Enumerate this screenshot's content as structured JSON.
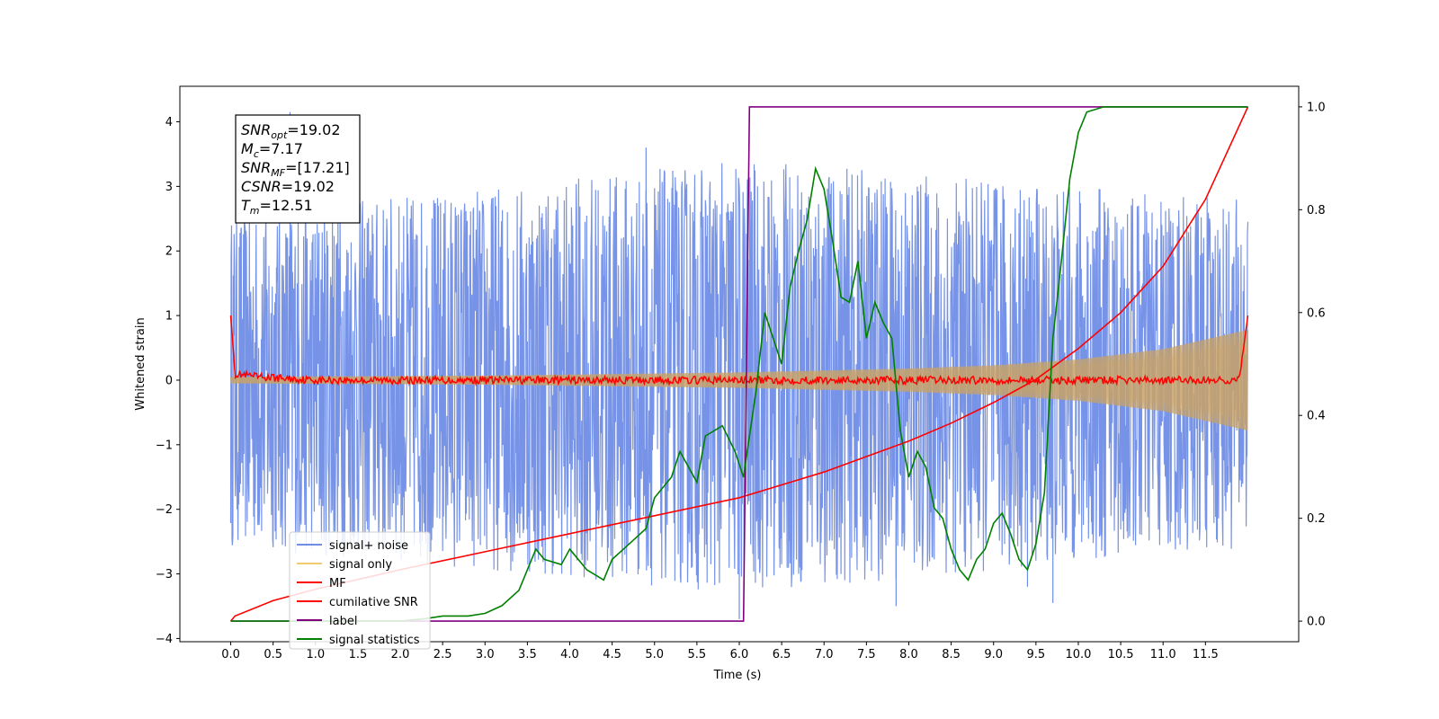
{
  "chart_data": {
    "type": "line",
    "xlabel": "Time (s)",
    "ylabel": "Whitened strain",
    "xlim": [
      -0.6,
      12.6
    ],
    "ylim": [
      -4.05,
      4.55
    ],
    "ylim_right": [
      -0.04,
      1.04
    ],
    "x_ticks": [
      "0.0",
      "0.5",
      "1.0",
      "1.5",
      "2.0",
      "2.5",
      "3.0",
      "3.5",
      "4.0",
      "4.5",
      "5.0",
      "5.5",
      "6.0",
      "6.5",
      "7.0",
      "7.5",
      "8.0",
      "8.5",
      "9.0",
      "9.5",
      "10.0",
      "10.5",
      "11.0",
      "11.5"
    ],
    "y_ticks": [
      "4",
      "3",
      "2",
      "1",
      "0",
      "−1",
      "−2",
      "−3",
      "−4"
    ],
    "y_ticks_right": [
      "1.0",
      "0.8",
      "0.6",
      "0.4",
      "0.2",
      "0.0"
    ],
    "legend_position": "lower-left",
    "grid": false,
    "legend": [
      {
        "name": "signal+ noise",
        "color": "#6f8de6"
      },
      {
        "name": "signal only",
        "color": "#f5c96e"
      },
      {
        "name": "MF",
        "color": "#ff0000"
      },
      {
        "name": "cumilative SNR",
        "color": "#ff0000"
      },
      {
        "name": "label",
        "color": "#800080"
      },
      {
        "name": "signal statistics",
        "color": "#008000"
      }
    ],
    "annotation": [
      {
        "sym": "SNR",
        "sub": "opt",
        "value": "=19.02"
      },
      {
        "sym": "M",
        "sub": "c",
        "value": "=7.17"
      },
      {
        "sym": "SNR",
        "sub": "MF",
        "value": "=[17.21]"
      },
      {
        "sym": "CSNR",
        "sub": "",
        "value": "=19.02"
      },
      {
        "sym": "T",
        "sub": "m",
        "value": "=12.51"
      }
    ],
    "series": [
      {
        "name": "signal+ noise",
        "axis": "left",
        "x_range": [
          0.0,
          12.0
        ],
        "approx_peak_envelope": [
          [
            0.0,
            2.6
          ],
          [
            6.0,
            3.4
          ],
          [
            12.0,
            2.8
          ]
        ],
        "approx_trough_envelope": [
          [
            0.0,
            -2.6
          ],
          [
            6.0,
            -3.3
          ],
          [
            12.0,
            -2.6
          ]
        ],
        "notable_extremes": [
          [
            0.7,
            4.15
          ],
          [
            1.2,
            3.9
          ],
          [
            4.9,
            3.6
          ],
          [
            6.0,
            -3.7
          ],
          [
            7.85,
            -3.5
          ],
          [
            9.4,
            -3.2
          ],
          [
            9.7,
            -3.45
          ]
        ]
      },
      {
        "name": "signal only",
        "axis": "left",
        "envelope": [
          [
            0.0,
            0.05
          ],
          [
            3.0,
            0.07
          ],
          [
            6.0,
            0.12
          ],
          [
            8.0,
            0.18
          ],
          [
            9.0,
            0.23
          ],
          [
            10.0,
            0.32
          ],
          [
            11.0,
            0.48
          ],
          [
            12.0,
            0.78
          ]
        ]
      },
      {
        "name": "MF",
        "axis": "left",
        "points": [
          [
            0.0,
            1.0
          ],
          [
            0.05,
            0.1
          ],
          [
            0.3,
            0.05
          ],
          [
            1.0,
            0.0
          ],
          [
            3.0,
            0.0
          ],
          [
            6.0,
            0.0
          ],
          [
            9.0,
            0.0
          ],
          [
            11.9,
            0.0
          ],
          [
            12.0,
            1.0
          ]
        ]
      },
      {
        "name": "cumilative SNR",
        "axis": "right",
        "points": [
          [
            0.0,
            0.0
          ],
          [
            0.05,
            0.01
          ],
          [
            0.5,
            0.04
          ],
          [
            1.0,
            0.062
          ],
          [
            2.0,
            0.1
          ],
          [
            3.0,
            0.135
          ],
          [
            4.0,
            0.17
          ],
          [
            5.0,
            0.205
          ],
          [
            6.0,
            0.24
          ],
          [
            7.0,
            0.29
          ],
          [
            8.0,
            0.35
          ],
          [
            8.5,
            0.385
          ],
          [
            9.0,
            0.425
          ],
          [
            9.5,
            0.47
          ],
          [
            10.0,
            0.53
          ],
          [
            10.5,
            0.6
          ],
          [
            11.0,
            0.69
          ],
          [
            11.5,
            0.82
          ],
          [
            12.0,
            1.0
          ]
        ]
      },
      {
        "name": "label",
        "axis": "right",
        "points": [
          [
            0.0,
            0.0
          ],
          [
            6.05,
            0.0
          ],
          [
            6.12,
            1.0
          ],
          [
            12.0,
            1.0
          ]
        ]
      },
      {
        "name": "signal statistics",
        "axis": "right",
        "points": [
          [
            0.0,
            0.0
          ],
          [
            1.0,
            0.0
          ],
          [
            2.0,
            0.0
          ],
          [
            2.3,
            0.005
          ],
          [
            2.5,
            0.01
          ],
          [
            2.8,
            0.01
          ],
          [
            3.0,
            0.015
          ],
          [
            3.2,
            0.03
          ],
          [
            3.4,
            0.06
          ],
          [
            3.5,
            0.1
          ],
          [
            3.6,
            0.14
          ],
          [
            3.7,
            0.12
          ],
          [
            3.9,
            0.11
          ],
          [
            4.0,
            0.14
          ],
          [
            4.2,
            0.1
          ],
          [
            4.4,
            0.08
          ],
          [
            4.5,
            0.12
          ],
          [
            4.7,
            0.15
          ],
          [
            4.9,
            0.18
          ],
          [
            5.0,
            0.24
          ],
          [
            5.2,
            0.28
          ],
          [
            5.3,
            0.33
          ],
          [
            5.5,
            0.27
          ],
          [
            5.6,
            0.36
          ],
          [
            5.8,
            0.38
          ],
          [
            5.95,
            0.33
          ],
          [
            6.05,
            0.28
          ],
          [
            6.2,
            0.45
          ],
          [
            6.3,
            0.6
          ],
          [
            6.4,
            0.55
          ],
          [
            6.5,
            0.5
          ],
          [
            6.6,
            0.65
          ],
          [
            6.7,
            0.72
          ],
          [
            6.8,
            0.78
          ],
          [
            6.9,
            0.88
          ],
          [
            7.0,
            0.84
          ],
          [
            7.1,
            0.74
          ],
          [
            7.2,
            0.63
          ],
          [
            7.3,
            0.62
          ],
          [
            7.4,
            0.7
          ],
          [
            7.5,
            0.55
          ],
          [
            7.6,
            0.62
          ],
          [
            7.7,
            0.58
          ],
          [
            7.8,
            0.55
          ],
          [
            7.9,
            0.37
          ],
          [
            8.0,
            0.28
          ],
          [
            8.1,
            0.33
          ],
          [
            8.2,
            0.3
          ],
          [
            8.3,
            0.22
          ],
          [
            8.4,
            0.2
          ],
          [
            8.5,
            0.14
          ],
          [
            8.6,
            0.1
          ],
          [
            8.7,
            0.08
          ],
          [
            8.8,
            0.12
          ],
          [
            8.9,
            0.14
          ],
          [
            9.0,
            0.19
          ],
          [
            9.1,
            0.21
          ],
          [
            9.2,
            0.17
          ],
          [
            9.3,
            0.12
          ],
          [
            9.4,
            0.1
          ],
          [
            9.5,
            0.15
          ],
          [
            9.6,
            0.25
          ],
          [
            9.7,
            0.55
          ],
          [
            9.8,
            0.7
          ],
          [
            9.9,
            0.86
          ],
          [
            10.0,
            0.95
          ],
          [
            10.1,
            0.99
          ],
          [
            10.3,
            1.0
          ],
          [
            11.0,
            1.0
          ],
          [
            12.0,
            1.0
          ]
        ]
      }
    ]
  }
}
